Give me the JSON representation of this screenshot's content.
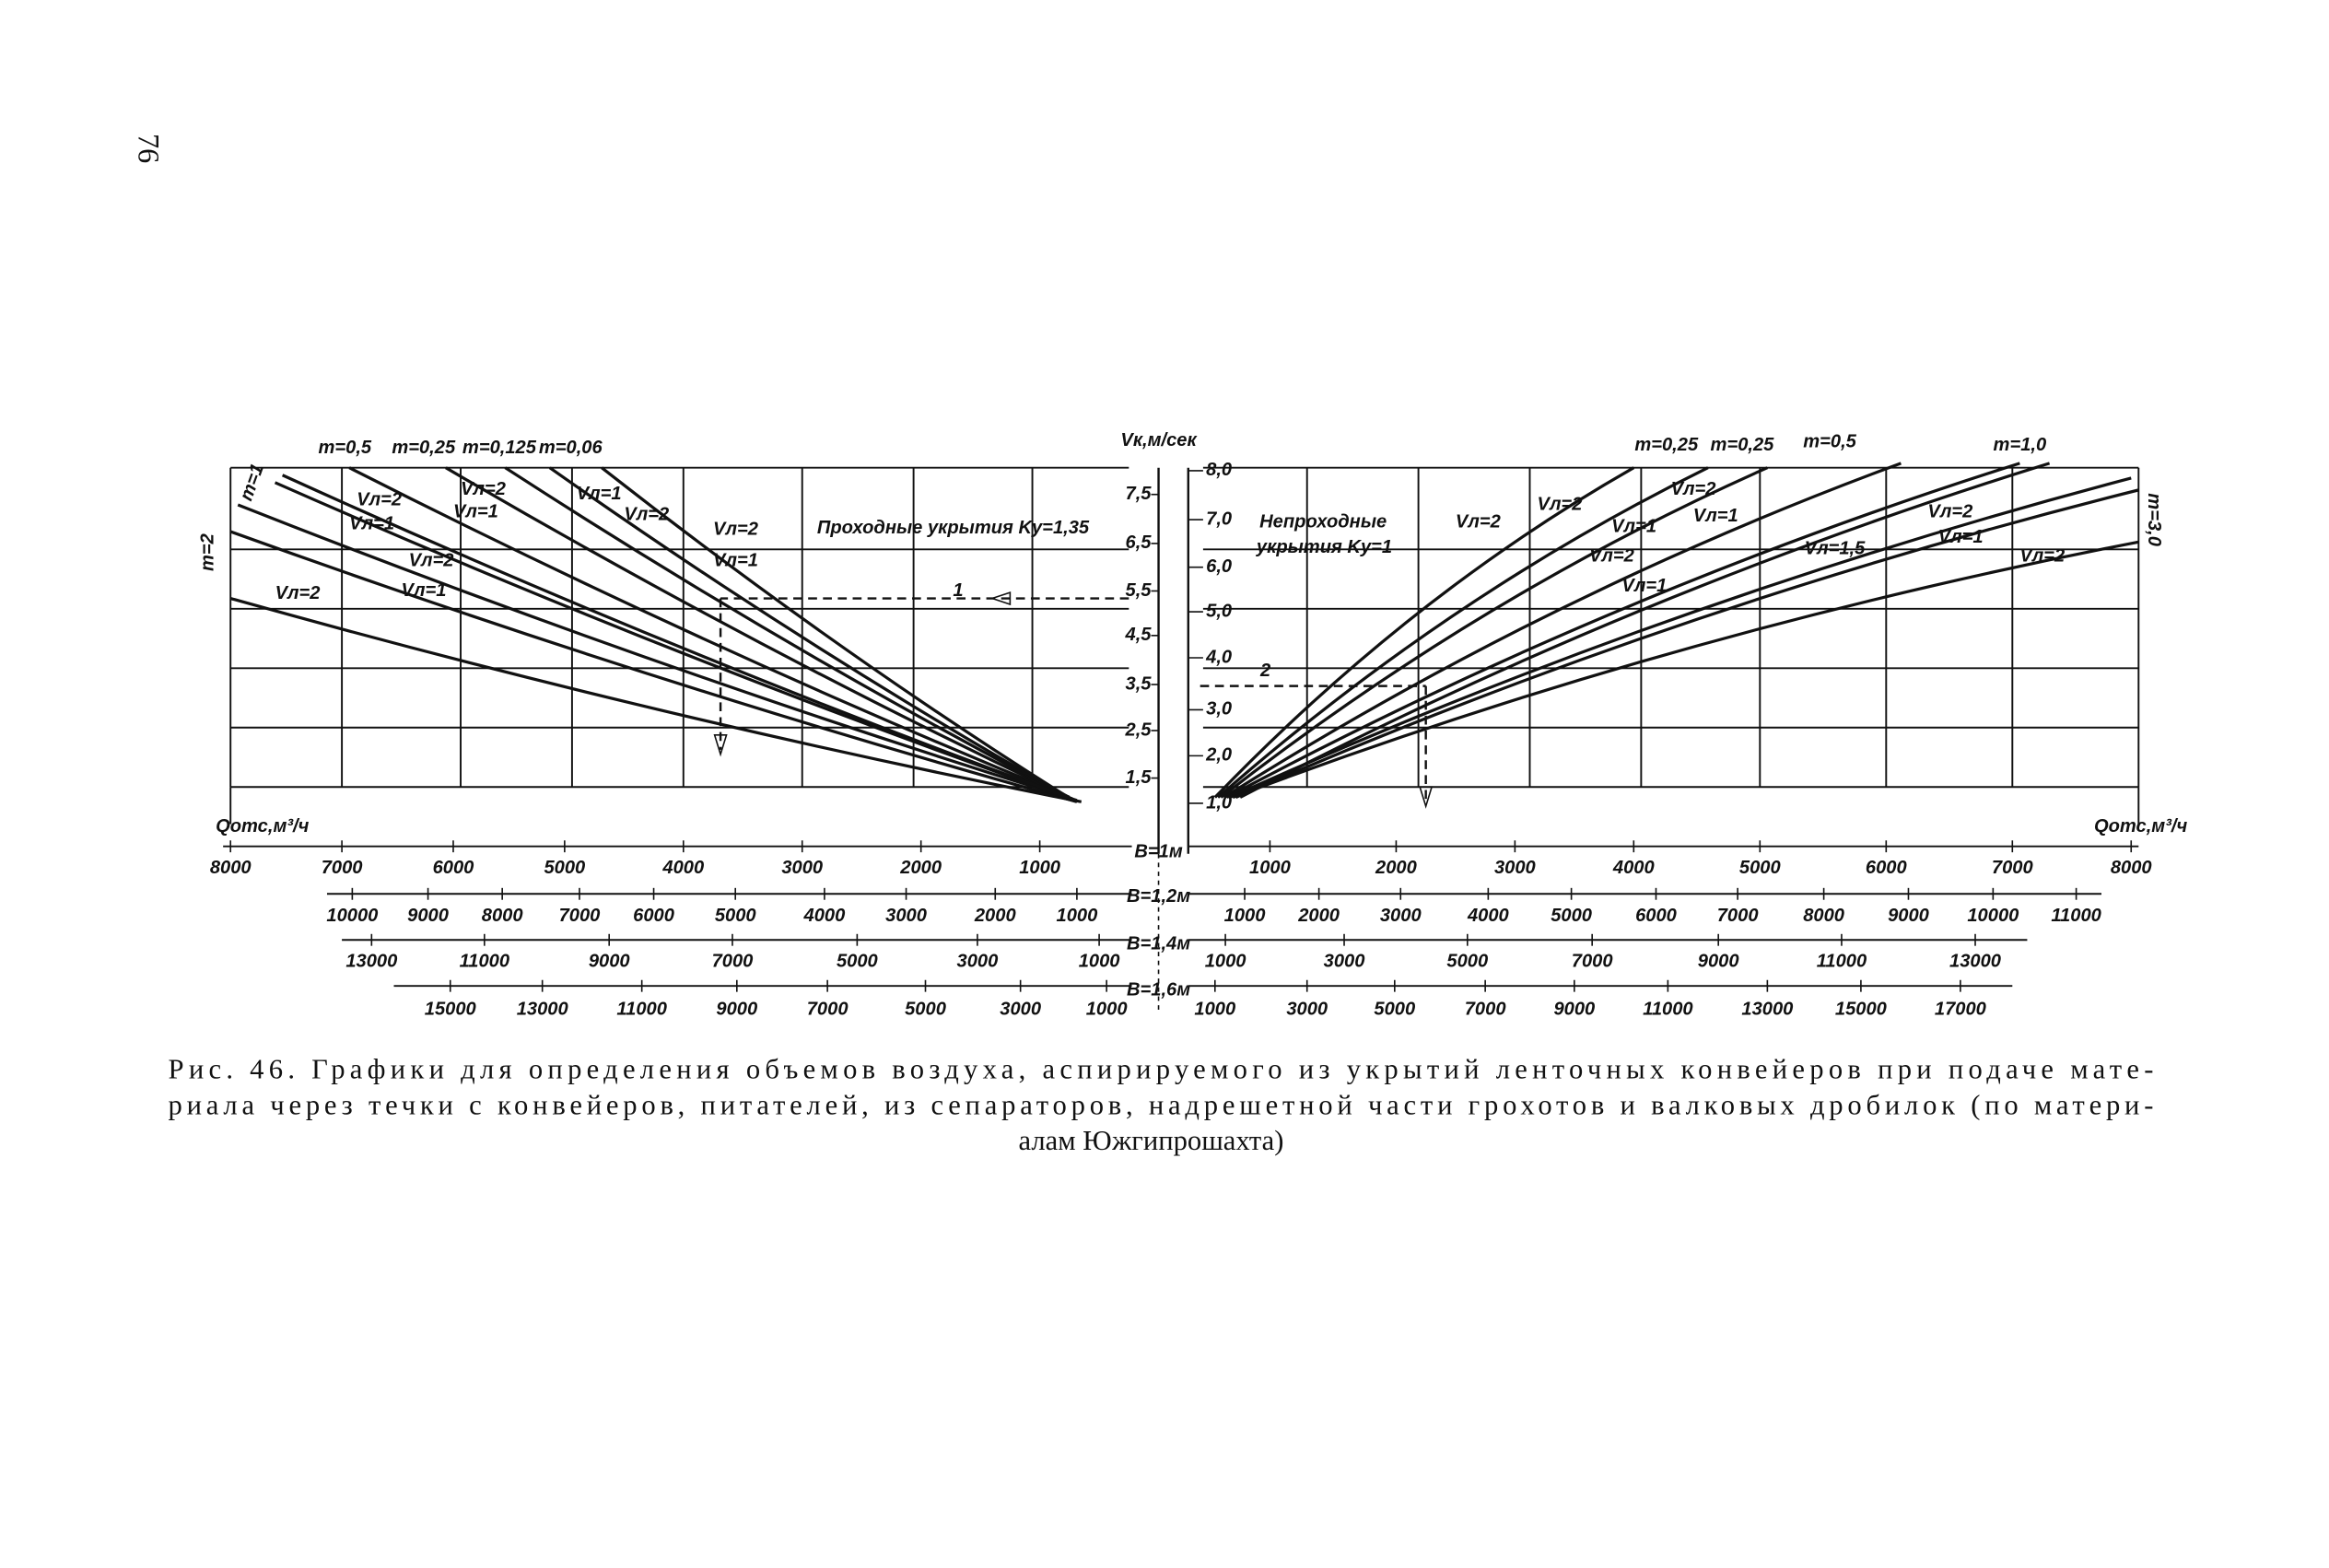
{
  "page_number": "76",
  "figure": {
    "axis_title": "Vк,м/сек",
    "center_ticks_left": [
      "7,5",
      "6,5",
      "5,5",
      "4,5",
      "3,5",
      "2,5",
      "1,5"
    ],
    "center_ticks_right": [
      "8,0",
      "7,0",
      "6,0",
      "5,0",
      "4,0",
      "3,0",
      "2,0",
      "1,0"
    ],
    "left_panel_title": "Проходные укрытия Kу=1,35",
    "right_panel_title": [
      "Непроходные",
      "укрытия Kу=1"
    ],
    "q_label_left": "Qотс,м³/ч",
    "q_label_right": "Qотс,м³/ч",
    "markers": [
      "1",
      "2"
    ],
    "m_labels_left": [
      "m=0,5",
      "m=0,25",
      "m=0,125",
      "m=0,06",
      "m=1",
      "m=2"
    ],
    "m_labels_right": [
      "m=0,25",
      "m=0,25",
      "m=0,5",
      "m=1,0",
      "m=3,0"
    ],
    "curve_labels_left": [
      "Vл=2",
      "Vл=1",
      "Vл=2",
      "Vл=1",
      "Vл=1",
      "Vл=2",
      "Vл=2",
      "Vл=1",
      "Vл=2",
      "Vл=1",
      "Vл=2"
    ],
    "curve_labels_right": [
      "Vл=2",
      "Vл=2",
      "Vл=1",
      "Vл=2",
      "Vл=1",
      "Vл=2",
      "Vл=1",
      "Vл=1,5",
      "Vл=2",
      "Vл=1",
      "Vл=2"
    ],
    "scales": [
      {
        "label": "B=1м",
        "left": [
          "8000",
          "7000",
          "6000",
          "5000",
          "4000",
          "3000",
          "2000",
          "1000"
        ],
        "right": [
          "1000",
          "2000",
          "3000",
          "4000",
          "5000",
          "6000",
          "7000",
          "8000"
        ]
      },
      {
        "label": "B=1,2м",
        "left": [
          "10000",
          "9000",
          "8000",
          "7000",
          "6000",
          "5000",
          "4000",
          "3000",
          "2000",
          "1000"
        ],
        "right": [
          "1000",
          "2000",
          "3000",
          "4000",
          "5000",
          "6000",
          "7000",
          "8000",
          "9000",
          "10000",
          "11000"
        ]
      },
      {
        "label": "B=1,4м",
        "left": [
          "13000",
          "11000",
          "9000",
          "7000",
          "5000",
          "3000",
          "1000"
        ],
        "right": [
          "1000",
          "3000",
          "5000",
          "7000",
          "9000",
          "11000",
          "13000"
        ]
      },
      {
        "label": "B=1,6м",
        "left": [
          "15000",
          "13000",
          "11000",
          "9000",
          "7000",
          "5000",
          "3000",
          "1000"
        ],
        "right": [
          "1000",
          "3000",
          "5000",
          "7000",
          "9000",
          "11000",
          "13000",
          "15000",
          "17000"
        ]
      }
    ]
  },
  "caption": [
    "Рис. 46. Графики для определения объемов воздуха, аспирируемого из укрытий ленточных конвейеров при подаче мате-",
    "риала через течки с конвейеров, питателей, из сепараторов, надрешетной части грохотов и валковых дробилок (по матери-",
    "алам Южгипрошахта)"
  ]
}
